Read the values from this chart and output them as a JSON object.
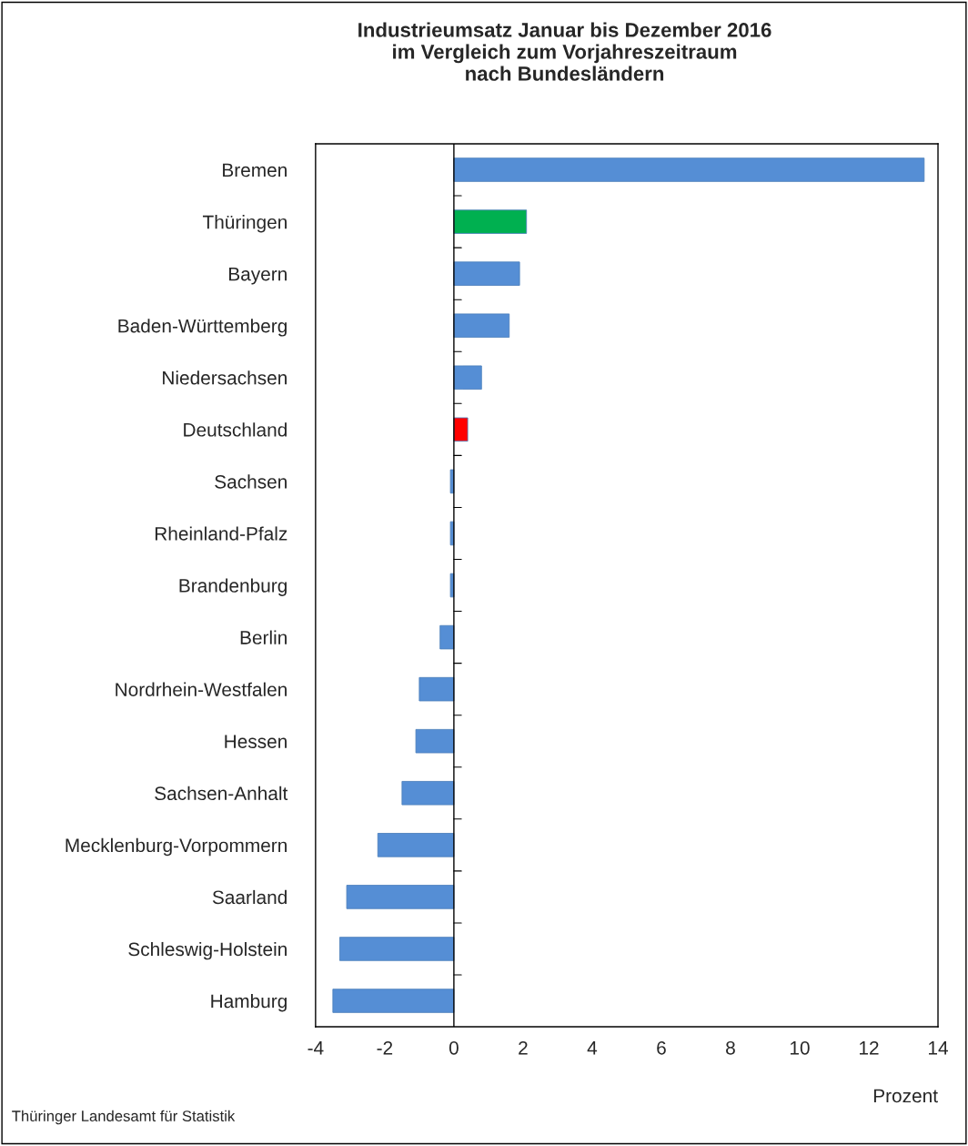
{
  "chart_data": {
    "type": "bar",
    "orientation": "horizontal",
    "title": "Industrieumsatz Januar bis Dezember 2016\nim Vergleich zum Vorjahreszeitraum\nnach Bundesländern",
    "xlabel": "Prozent",
    "categories": [
      "Bremen",
      "Thüringen",
      "Bayern",
      "Baden-Württemberg",
      "Niedersachsen",
      "Deutschland",
      "Sachsen",
      "Rheinland-Pfalz",
      "Brandenburg",
      "Berlin",
      "Nordrhein-Westfalen",
      "Hessen",
      "Sachsen-Anhalt",
      "Mecklenburg-Vorpommern",
      "Saarland",
      "Schleswig-Holstein",
      "Hamburg"
    ],
    "values": [
      13.6,
      2.1,
      1.9,
      1.6,
      0.8,
      0.4,
      -0.1,
      -0.1,
      -0.1,
      -0.4,
      -1.0,
      -1.1,
      -1.5,
      -2.2,
      -3.1,
      -3.3,
      -3.5
    ],
    "colors": [
      "#558ed5",
      "#00b050",
      "#558ed5",
      "#558ed5",
      "#558ed5",
      "#ff0000",
      "#558ed5",
      "#558ed5",
      "#558ed5",
      "#558ed5",
      "#558ed5",
      "#558ed5",
      "#558ed5",
      "#558ed5",
      "#558ed5",
      "#558ed5",
      "#558ed5"
    ],
    "xlim": [
      -4,
      14
    ],
    "xticks": [
      -4,
      -2,
      0,
      2,
      4,
      6,
      8,
      10,
      12,
      14
    ],
    "legend": false,
    "annotations": [
      "Thüringer Landesamt für Statistik"
    ]
  }
}
